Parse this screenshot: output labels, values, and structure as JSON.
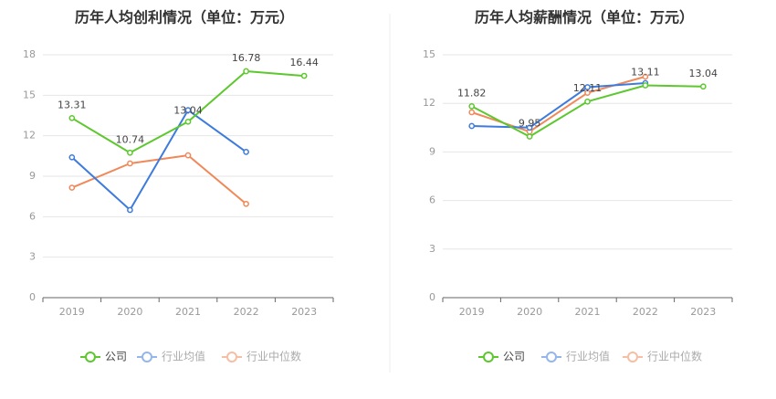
{
  "chart_data": [
    {
      "type": "line",
      "title": "历年人均创利情况（单位：万元）",
      "categories": [
        "2019",
        "2020",
        "2021",
        "2022",
        "2023"
      ],
      "ylim": [
        0,
        18
      ],
      "yticks": [
        "0",
        "3",
        "6",
        "9",
        "12",
        "15",
        "18"
      ],
      "grid": true,
      "legend_position": "bottom",
      "series": [
        {
          "name": "公司",
          "color": "#5cc82d",
          "values": [
            13.31,
            10.74,
            13.04,
            16.78,
            16.44
          ],
          "labels": [
            "13.31",
            "10.74",
            "13.04",
            "16.78",
            "16.44"
          ]
        },
        {
          "name": "行业均值",
          "color": "#3d7bdc",
          "values": [
            10.4,
            6.5,
            13.9,
            10.8,
            null
          ],
          "labels": []
        },
        {
          "name": "行业中位数",
          "color": "#f0895a",
          "values": [
            8.15,
            9.95,
            10.55,
            6.95,
            null
          ],
          "labels": []
        }
      ]
    },
    {
      "type": "line",
      "title": "历年人均薪酬情况（单位：万元）",
      "categories": [
        "2019",
        "2020",
        "2021",
        "2022",
        "2023"
      ],
      "ylim": [
        0,
        15
      ],
      "yticks": [
        "0",
        "3",
        "6",
        "9",
        "12",
        "15"
      ],
      "grid": true,
      "legend_position": "bottom",
      "series": [
        {
          "name": "公司",
          "color": "#5cc82d",
          "values": [
            11.82,
            9.95,
            12.11,
            13.11,
            13.04
          ],
          "labels": [
            "11.82",
            "9.95",
            "12.11",
            "13.11",
            "13.04"
          ]
        },
        {
          "name": "行业均值",
          "color": "#3d7bdc",
          "values": [
            10.6,
            10.5,
            13.0,
            13.25,
            null
          ],
          "labels": []
        },
        {
          "name": "行业中位数",
          "color": "#f0895a",
          "values": [
            11.45,
            10.25,
            12.65,
            13.65,
            null
          ],
          "labels": []
        }
      ]
    }
  ]
}
